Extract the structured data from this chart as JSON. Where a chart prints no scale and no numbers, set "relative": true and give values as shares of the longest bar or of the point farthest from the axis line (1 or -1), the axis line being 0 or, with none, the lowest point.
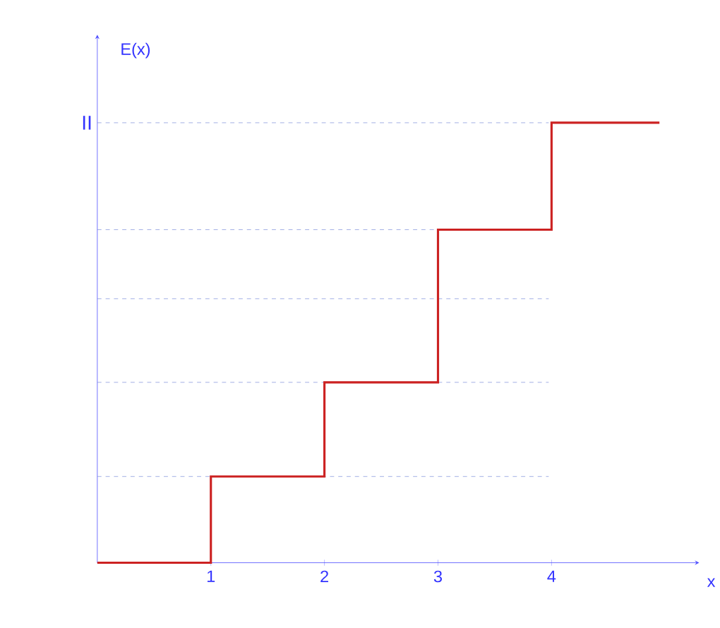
{
  "chart_data": {
    "type": "step",
    "relative": true,
    "xlabel": "x",
    "ylabel": "E(x)",
    "xlim": [
      0,
      5.3
    ],
    "xticks": [
      1,
      2,
      3,
      4
    ],
    "series": [
      {
        "color": "#cc2222",
        "x": [
          0,
          1,
          2,
          3,
          4,
          4.95
        ],
        "values": [
          0,
          0.196,
          0.41,
          0.757,
          1,
          1
        ]
      }
    ],
    "ref_lines": [
      {
        "axis": "y",
        "value": 0.196,
        "color": "#8899dd",
        "line_style": "dashed"
      },
      {
        "axis": "y",
        "value": 0.41,
        "color": "#8899dd",
        "line_style": "dashed"
      },
      {
        "axis": "y",
        "value": 0.6,
        "color": "#8899dd",
        "line_style": "dashed"
      },
      {
        "axis": "y",
        "value": 0.757,
        "color": "#8899dd",
        "line_style": "dashed"
      },
      {
        "axis": "y",
        "value": 1,
        "label": "II",
        "color": "#8899dd",
        "line_style": "dashed"
      }
    ]
  }
}
